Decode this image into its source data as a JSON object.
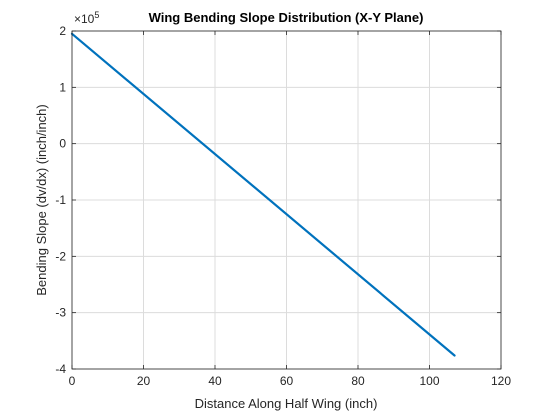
{
  "chart_data": {
    "type": "line",
    "title": "Wing Bending Slope Distribution (X-Y Plane)",
    "xlabel": "Distance Along Half Wing (inch)",
    "ylabel": "Bending Slope (dv/dx) (inch/inch)",
    "xlim": [
      0,
      120
    ],
    "ylim": [
      -400000,
      200000
    ],
    "xticks": [
      0,
      20,
      40,
      60,
      80,
      100,
      120
    ],
    "xtick_labels": [
      "0",
      "20",
      "40",
      "60",
      "80",
      "100",
      "120"
    ],
    "yticks": [
      -400000,
      -300000,
      -200000,
      -100000,
      0,
      100000,
      200000
    ],
    "ytick_labels": [
      "-4",
      "-3",
      "-2",
      "-1",
      "0",
      "1",
      "2"
    ],
    "y_exponent_base": "×10",
    "y_exponent_power": "5",
    "grid": true,
    "series": [
      {
        "color": "#0072BD",
        "x": [
          0,
          107
        ],
        "y": [
          195000,
          -376000
        ]
      }
    ]
  }
}
